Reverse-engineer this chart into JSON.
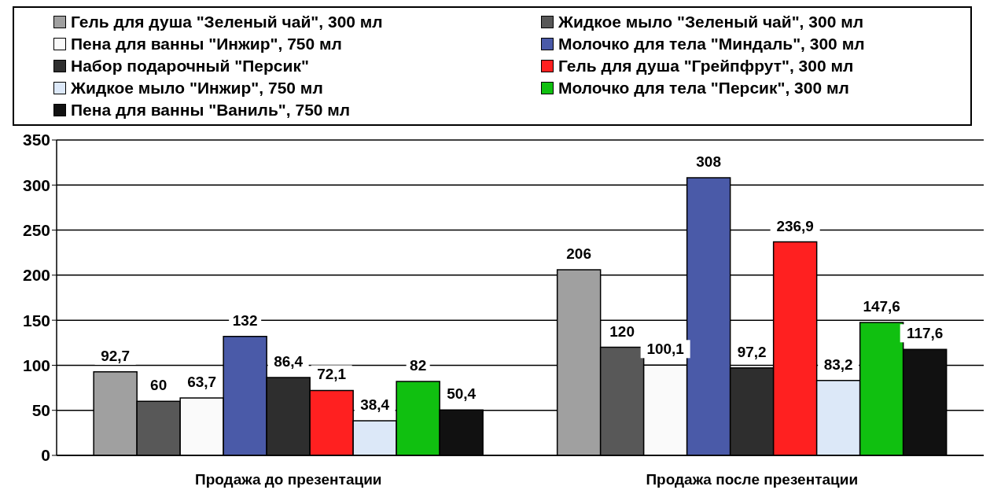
{
  "chart_data": {
    "type": "bar",
    "categories": [
      "Продажа до презентации",
      "Продажа после презентации"
    ],
    "series": [
      {
        "name": "Гель для душа \"Зеленый чай\", 300 мл",
        "color": "#a0a0a0",
        "values": [
          92.7,
          206
        ],
        "value_labels": [
          "92,7",
          "206"
        ]
      },
      {
        "name": "Жидкое мыло \"Зеленый чай\", 300 мл",
        "color": "#585858",
        "values": [
          60,
          120
        ],
        "value_labels": [
          "60",
          "120"
        ]
      },
      {
        "name": "Пена для ванны \"Инжир\", 750 мл",
        "color": "#fafafa",
        "values": [
          63.7,
          100.1
        ],
        "value_labels": [
          "63,7",
          "100,1"
        ]
      },
      {
        "name": "Молочко для тела \"Миндаль\", 300 мл",
        "color": "#4a5aa8",
        "values": [
          132,
          308
        ],
        "value_labels": [
          "132",
          "308"
        ]
      },
      {
        "name": "Набор подарочный \"Персик\"",
        "color": "#2e2e2e",
        "values": [
          86.4,
          97.2
        ],
        "value_labels": [
          "86,4",
          "97,2"
        ]
      },
      {
        "name": "Гель для душа \"Грейпфрут\", 300 мл",
        "color": "#ff2020",
        "values": [
          72.1,
          236.9
        ],
        "value_labels": [
          "72,1",
          "236,9"
        ]
      },
      {
        "name": "Жидкое мыло \"Инжир\", 750 мл",
        "color": "#dce8f8",
        "values": [
          38.4,
          83.2
        ],
        "value_labels": [
          "38,4",
          "83,2"
        ]
      },
      {
        "name": "Молочко для тела \"Персик\", 300 мл",
        "color": "#10c010",
        "values": [
          82,
          147.6
        ],
        "value_labels": [
          "82",
          "147,6"
        ]
      },
      {
        "name": "Пена для ванны \"Ваниль\", 750 мл",
        "color": "#111111",
        "values": [
          50.4,
          117.6
        ],
        "value_labels": [
          "50,4",
          "117,6"
        ]
      }
    ],
    "ylim": [
      0,
      350
    ],
    "yticks": [
      0,
      50,
      100,
      150,
      200,
      250,
      300,
      350
    ],
    "grid": "y",
    "legend": "top"
  }
}
